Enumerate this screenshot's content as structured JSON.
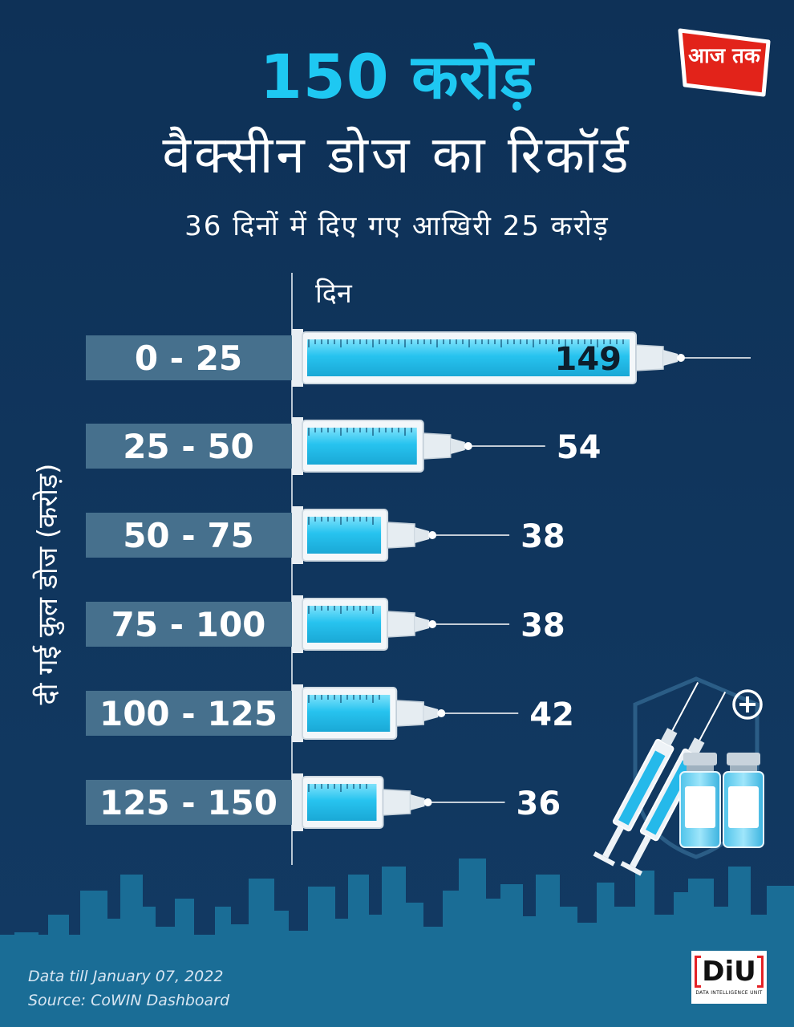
{
  "title_line1": "150 करोड़",
  "title_line2": "वैक्सीन डोज का रिकॉर्ड",
  "subtitle": "36 दिनों में दिए गए आखिरी 25 करोड़",
  "logo_aajtak": "आज तक",
  "logo_diu": "DiU",
  "logo_diu_sub": "DATA INTELLIGENCE UNIT",
  "footer": {
    "data_till": "Data till January 07, 2022",
    "source": "Source: CoWIN Dashboard"
  },
  "colors": {
    "background": "#0f3358",
    "accent": "#1ec8f2",
    "label_box": "#46708d",
    "skyline": "#1a6d96"
  },
  "chart_data": {
    "type": "bar",
    "orientation": "horizontal",
    "xlabel": "दिन",
    "ylabel": "दी गई कुल डोज (करोड़)",
    "categories": [
      "0 - 25",
      "25 - 50",
      "50 - 75",
      "75 - 100",
      "100 - 125",
      "125 - 150"
    ],
    "values": [
      149,
      54,
      38,
      38,
      42,
      36
    ],
    "xlim": [
      0,
      149
    ],
    "grid": false,
    "legend": "none"
  }
}
